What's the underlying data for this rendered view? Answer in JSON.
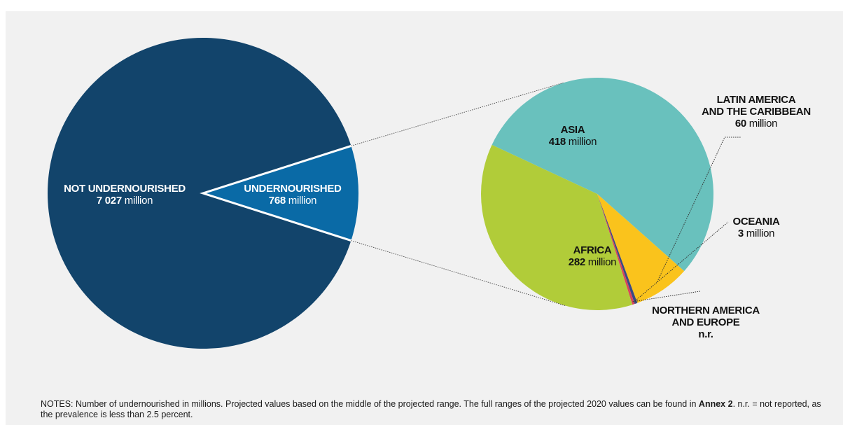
{
  "chart_data": [
    {
      "type": "pie",
      "slices": [
        {
          "name": "NOT UNDERNOURISHED",
          "value": 7027,
          "value_text": "7 027",
          "unit": "million",
          "color": "#12446b"
        },
        {
          "name": "UNDERNOURISHED",
          "value": 768,
          "value_text": "768",
          "unit": "million",
          "color": "#0a6aa6"
        }
      ]
    },
    {
      "type": "pie",
      "slices": [
        {
          "name": "ASIA",
          "value": 418,
          "value_text": "418",
          "unit": "million",
          "color": "#69c1bd"
        },
        {
          "name": "LATIN AMERICA|AND THE CARIBBEAN",
          "value": 60,
          "value_text": "60",
          "unit": "million",
          "color": "#fac31c"
        },
        {
          "name": "OCEANIA",
          "value": 3,
          "value_text": "3",
          "unit": "million",
          "color": "#3b4a82"
        },
        {
          "name": "NORTHERN AMERICA|AND EUROPE",
          "value": 2.5,
          "value_text": "n.r.",
          "unit": "",
          "color": "#d9445a"
        },
        {
          "name": "AFRICA",
          "value": 282,
          "value_text": "282",
          "unit": "million",
          "color": "#b1cc39"
        }
      ]
    }
  ],
  "notes": {
    "prefix": "NOTES: Number of undernourished in millions. Projected values based on the middle of the projected range. The full ranges of the projected 2020 values can be found in ",
    "bold": "Annex 2",
    "suffix": ". n.r. = not reported, as the prevalence is less than 2.5 percent."
  }
}
